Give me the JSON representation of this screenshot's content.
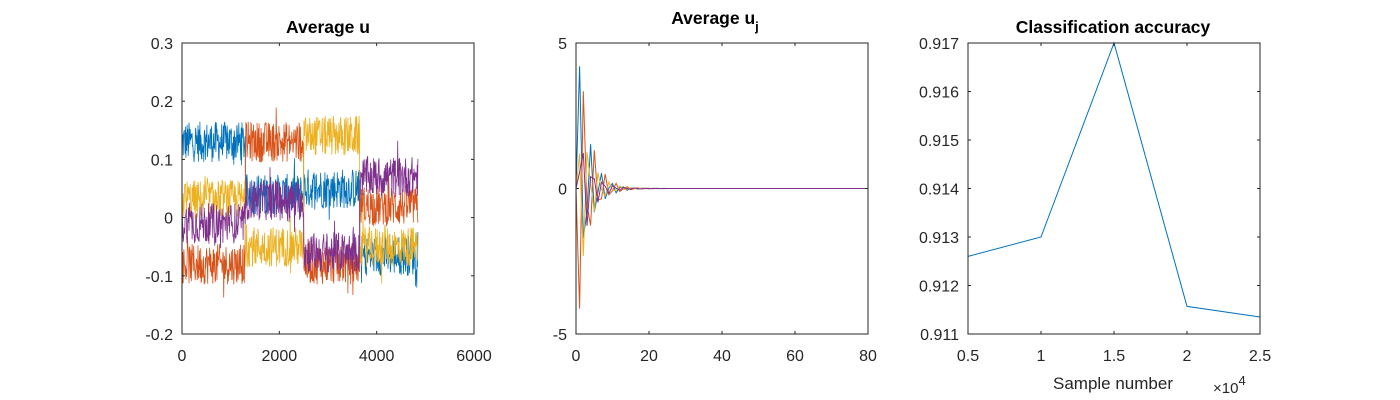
{
  "chart_data": [
    {
      "type": "line",
      "title": "Average u",
      "xlabel": "",
      "ylabel": "",
      "xlim": [
        0,
        6000
      ],
      "ylim": [
        -0.2,
        0.3
      ],
      "xticks": [
        0,
        2000,
        4000,
        6000
      ],
      "xtick_labels": [
        "0",
        "2000",
        "4000",
        "6000"
      ],
      "yticks": [
        -0.2,
        -0.1,
        0,
        0.1,
        0.2,
        0.3
      ],
      "ytick_labels": [
        "-0.2",
        "-0.1",
        "0",
        "0.1",
        "0.2",
        "0.3"
      ],
      "series": [
        {
          "color": "#0072BD",
          "levels": [
            [
              0,
              1300,
              0.13
            ],
            [
              1300,
              2500,
              0.04
            ],
            [
              2500,
              3650,
              0.05
            ],
            [
              3650,
              4850,
              -0.065
            ]
          ]
        },
        {
          "color": "#D95319",
          "levels": [
            [
              0,
              1300,
              -0.08
            ],
            [
              1300,
              2500,
              0.13
            ],
            [
              2500,
              3650,
              -0.08
            ],
            [
              3650,
              4850,
              0.02
            ]
          ]
        },
        {
          "color": "#EDB120",
          "levels": [
            [
              0,
              1300,
              0.03
            ],
            [
              1300,
              2500,
              -0.05
            ],
            [
              2500,
              3650,
              0.14
            ],
            [
              3650,
              4850,
              -0.05
            ]
          ]
        },
        {
          "color": "#7E2F8E",
          "levels": [
            [
              0,
              1300,
              -0.01
            ],
            [
              1300,
              2500,
              0.03
            ],
            [
              2500,
              3650,
              -0.06
            ],
            [
              3650,
              4850,
              0.07
            ]
          ]
        }
      ],
      "noise_amplitude": 0.035,
      "x_end": 4850
    },
    {
      "type": "line",
      "title_main": "Average u",
      "title_sub": "j",
      "xlabel": "",
      "ylabel": "",
      "xlim": [
        0,
        80
      ],
      "ylim": [
        -5,
        5
      ],
      "xticks": [
        0,
        20,
        40,
        60,
        80
      ],
      "xtick_labels": [
        "0",
        "20",
        "40",
        "60",
        "80"
      ],
      "yticks": [
        -5,
        0,
        5
      ],
      "ytick_labels": [
        "-5",
        "0",
        "5"
      ],
      "series": [
        {
          "color": "#0072BD",
          "amp": 4.2,
          "phase": 0.0
        },
        {
          "color": "#D95319",
          "amp": -5.0,
          "phase": 0.6
        },
        {
          "color": "#EDB120",
          "amp": 3.3,
          "phase": 1.2
        },
        {
          "color": "#7E2F8E",
          "amp": -2.5,
          "phase": 1.8
        }
      ],
      "decay": 0.33,
      "period": 2.9
    },
    {
      "type": "line",
      "title": "Classification accuracy",
      "xlabel": "Sample number",
      "x_exponent_base": "×10",
      "x_exponent_power": "4",
      "ylabel": "",
      "xlim": [
        5000,
        25000
      ],
      "ylim": [
        0.911,
        0.917
      ],
      "xticks": [
        5000,
        10000,
        15000,
        20000,
        25000
      ],
      "xtick_labels": [
        "0.5",
        "1",
        "1.5",
        "2",
        "2.5"
      ],
      "yticks": [
        0.911,
        0.912,
        0.913,
        0.914,
        0.915,
        0.916,
        0.917
      ],
      "ytick_labels": [
        "0.911",
        "0.912",
        "0.913",
        "0.914",
        "0.915",
        "0.916",
        "0.917"
      ],
      "series": [
        {
          "color": "#0072BD",
          "x": [
            5000,
            10000,
            15000,
            20000,
            25000
          ],
          "y": [
            0.9126,
            0.913,
            0.917,
            0.91157,
            0.91135
          ]
        }
      ]
    }
  ]
}
